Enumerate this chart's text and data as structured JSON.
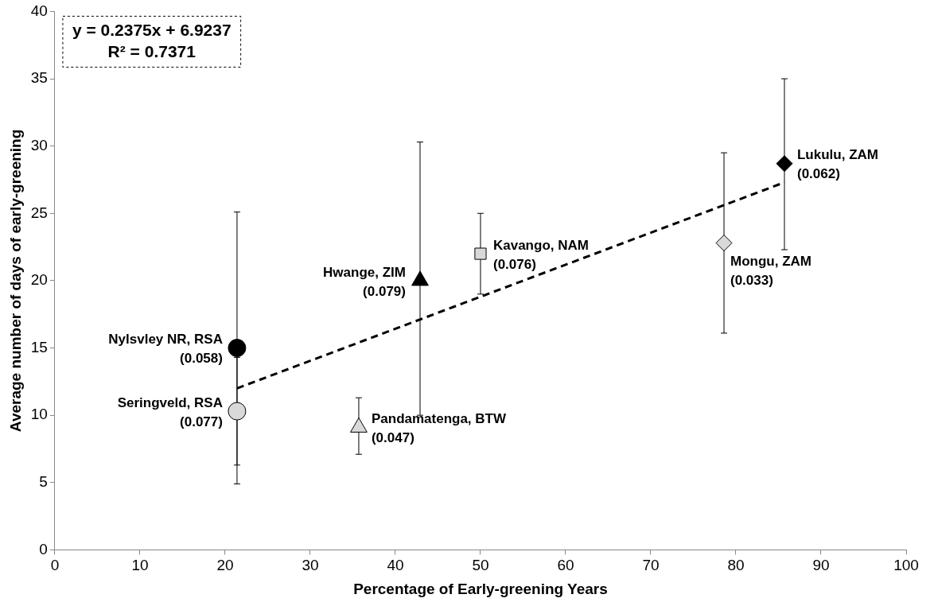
{
  "chart_data": {
    "type": "scatter",
    "xlabel": "Percentage of Early-greening Years",
    "ylabel": "Average number of days of early-greening",
    "xlim": [
      0,
      100
    ],
    "xticks": [
      0,
      10,
      20,
      30,
      40,
      50,
      60,
      70,
      80,
      90,
      100
    ],
    "ylim": [
      0,
      40
    ],
    "yticks": [
      0,
      5,
      10,
      15,
      20,
      25,
      30,
      35,
      40
    ],
    "grid": false,
    "legend": false,
    "series": [
      {
        "type": "scatter",
        "marker": "circle",
        "color": "#000000",
        "x": [
          21.4
        ],
        "values": [
          15
        ],
        "errors": [
          [
            4.9,
            25.1
          ]
        ]
      },
      {
        "type": "scatter",
        "marker": "circle",
        "color": "#d9d9d9",
        "x": [
          21.4
        ],
        "values": [
          10.3
        ],
        "errors": [
          [
            6.3,
            14.3
          ]
        ]
      },
      {
        "type": "scatter",
        "marker": "triangle",
        "color": "#000000",
        "x": [
          42.9
        ],
        "values": [
          20
        ],
        "errors": [
          [
            10,
            30.3
          ]
        ]
      },
      {
        "type": "scatter",
        "marker": "triangle",
        "color": "#d9d9d9",
        "x": [
          35.7
        ],
        "values": [
          9.1
        ],
        "errors": [
          [
            7.1,
            11.3
          ]
        ]
      },
      {
        "type": "scatter",
        "marker": "square",
        "color": "#d9d9d9",
        "x": [
          50
        ],
        "values": [
          22
        ],
        "errors": [
          [
            19,
            25
          ]
        ]
      },
      {
        "type": "scatter",
        "marker": "diamond",
        "color": "#d9d9d9",
        "x": [
          78.6
        ],
        "values": [
          22.8
        ],
        "errors": [
          [
            16.1,
            29.5
          ]
        ]
      },
      {
        "type": "scatter",
        "marker": "diamond",
        "color": "#000000",
        "x": [
          85.7
        ],
        "values": [
          28.7
        ],
        "errors": [
          [
            22.3,
            35
          ]
        ]
      },
      {
        "type": "line",
        "line_style": "dashed",
        "marker": "none",
        "color": "#000000",
        "x": [
          21.4,
          85.7
        ],
        "values": [
          12.0,
          27.3
        ]
      }
    ],
    "annotations": [
      {
        "text": "Nylsvley NR, RSA\n(0.058)",
        "x": 21.4,
        "y": 15
      },
      {
        "text": "Seringveld, RSA\n(0.077)",
        "x": 21.4,
        "y": 10.3
      },
      {
        "text": "Hwange, ZIM\n(0.079)",
        "x": 42.9,
        "y": 20
      },
      {
        "text": "Pandamatenga, BTW\n(0.047)",
        "x": 35.7,
        "y": 9.1
      },
      {
        "text": "Kavango, NAM\n(0.076)",
        "x": 50,
        "y": 22
      },
      {
        "text": "Mongu, ZAM\n(0.033)",
        "x": 78.6,
        "y": 22.8
      },
      {
        "text": "Lukulu, ZAM\n(0.062)",
        "x": 85.7,
        "y": 28.7
      },
      "y = 0.2375x + 6.9237\nR² = 0.7371"
    ]
  }
}
